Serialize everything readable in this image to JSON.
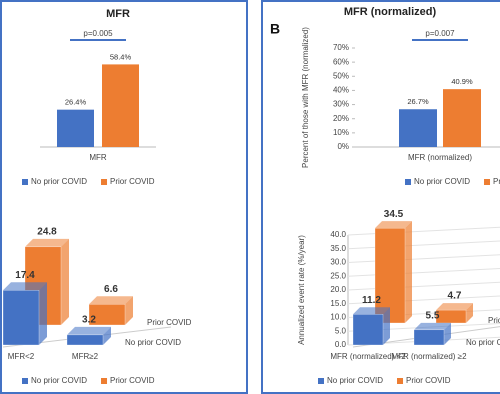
{
  "panel_label": "B",
  "chart_data": [
    {
      "type": "bar",
      "title": "MFR",
      "categories": [
        "MFR"
      ],
      "series": [
        {
          "name": "No prior COVID",
          "color": "#4472c4",
          "values": [
            26.4
          ],
          "value_labels": [
            "26.4%"
          ]
        },
        {
          "name": "Prior COVID",
          "color": "#ed7d31",
          "values": [
            58.4
          ],
          "value_labels": [
            "58.4%"
          ]
        }
      ],
      "ylim": [
        0,
        70
      ],
      "annotation": "p=0.005",
      "legend": "bottom"
    },
    {
      "type": "bar3d",
      "categories": [
        "MFR<2",
        "MFR≥2"
      ],
      "series": [
        {
          "name": "No prior COVID",
          "color": "#4472c4",
          "values": [
            17.4,
            3.2
          ]
        },
        {
          "name": "Prior COVID",
          "color": "#ed7d31",
          "values": [
            24.8,
            6.6
          ]
        }
      ],
      "ylim": [
        0,
        40
      ],
      "legend": "bottom"
    },
    {
      "type": "bar",
      "title": "MFR (normalized)",
      "ylabel": "Percent of those with MFR (normalized)",
      "categories": [
        "MFR (normalized)"
      ],
      "series": [
        {
          "name": "No prior COVID",
          "color": "#4472c4",
          "values": [
            26.7
          ],
          "value_labels": [
            "26.7%"
          ]
        },
        {
          "name": "Prior COVID",
          "color": "#ed7d31",
          "values": [
            40.9
          ],
          "value_labels": [
            "40.9%"
          ]
        }
      ],
      "ylim": [
        0,
        70
      ],
      "yticks": [
        {
          "value": 0,
          "label": "0%"
        },
        {
          "value": 10,
          "label": "10%"
        },
        {
          "value": 20,
          "label": "20%"
        },
        {
          "value": 30,
          "label": "30%"
        },
        {
          "value": 40,
          "label": "40%"
        },
        {
          "value": 50,
          "label": "50%"
        },
        {
          "value": 60,
          "label": "60%"
        },
        {
          "value": 70,
          "label": "70%"
        }
      ],
      "annotation": "p=0.007",
      "legend": "bottom"
    },
    {
      "type": "bar3d",
      "ylabel": "Annualized event rate (%/year)",
      "categories": [
        "MFR (normalized) <2",
        "MFR (normalized) ≥2"
      ],
      "series": [
        {
          "name": "No prior COVID",
          "color": "#4472c4",
          "values": [
            11.2,
            5.5
          ]
        },
        {
          "name": "Prior COVID",
          "color": "#ed7d31",
          "values": [
            34.5,
            4.7
          ]
        }
      ],
      "ylim": [
        0,
        40
      ],
      "yticks": [
        {
          "value": 0,
          "label": "0.0"
        },
        {
          "value": 5,
          "label": "5.0"
        },
        {
          "value": 10,
          "label": "10.0"
        },
        {
          "value": 15,
          "label": "15.0"
        },
        {
          "value": 20,
          "label": "20.0"
        },
        {
          "value": 25,
          "label": "25.0"
        },
        {
          "value": 30,
          "label": "30.0"
        },
        {
          "value": 35,
          "label": "35.0"
        },
        {
          "value": 40,
          "label": "40.0"
        }
      ],
      "legend": "bottom"
    }
  ]
}
